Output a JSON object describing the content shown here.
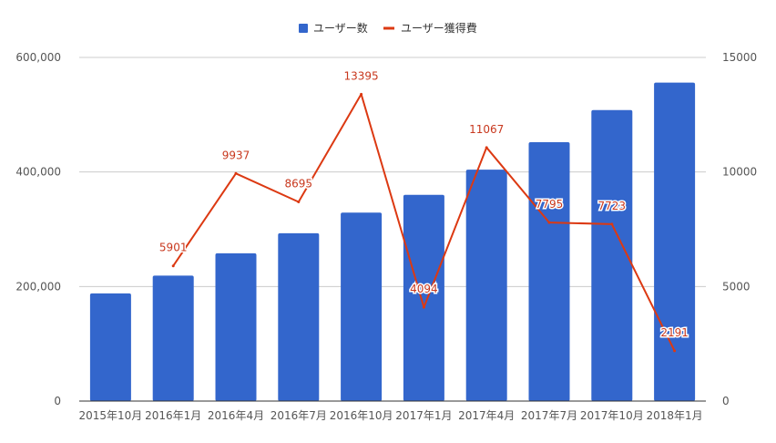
{
  "chart_data": {
    "type": "bar",
    "categories": [
      "2015年10月",
      "2016年1月",
      "2016年4月",
      "2016年7月",
      "2016年10月",
      "2017年1月",
      "2017年4月",
      "2017年7月",
      "2017年10月",
      "2018年1月"
    ],
    "series": [
      {
        "name": "ユーザー数",
        "type": "bar",
        "axis": "left",
        "color": "#3366cc",
        "values": [
          188000,
          219000,
          258000,
          293000,
          329000,
          360000,
          404000,
          452000,
          508000,
          556000
        ]
      },
      {
        "name": "ユーザー獲得費",
        "type": "line",
        "axis": "right",
        "color": "#dc3912",
        "values": [
          null,
          5901,
          9937,
          8695,
          13395,
          4094,
          11067,
          7795,
          7723,
          2191
        ],
        "labels": [
          "",
          "5901",
          "9937",
          "8695",
          "13395",
          "4094",
          "11067",
          "7795",
          "7723",
          "2191"
        ]
      }
    ],
    "y_left": {
      "min": 0,
      "max": 600000,
      "ticks": [
        "0",
        "200,000",
        "400,000",
        "600,000"
      ],
      "tick_values": [
        0,
        200000,
        400000,
        600000
      ]
    },
    "y_right": {
      "min": 0,
      "max": 15000,
      "ticks": [
        "0",
        "5000",
        "10000",
        "15000"
      ],
      "tick_values": [
        0,
        5000,
        10000,
        15000
      ]
    },
    "grid": true,
    "legend_position": "top"
  }
}
